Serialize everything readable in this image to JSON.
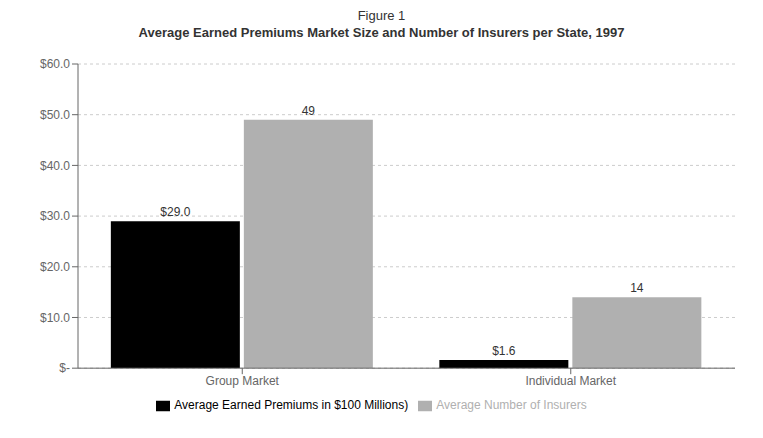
{
  "chart_data": {
    "type": "bar",
    "title": "Figure 1",
    "subtitle": "Average Earned Premiums Market Size and Number of Insurers per State, 1997",
    "categories": [
      "Group Market",
      "Individual Market"
    ],
    "series": [
      {
        "name": "Average Earned Premiums in $100 Millions)",
        "color": "#000000",
        "values": [
          29.0,
          1.6
        ],
        "value_labels": [
          "$29.0",
          "$1.6"
        ]
      },
      {
        "name": "Average Number of Insurers",
        "color": "#b0b0b0",
        "values": [
          49,
          14
        ]
      }
    ],
    "ylim": [
      0,
      60
    ],
    "yticks": [
      {
        "value": 0,
        "label": "$-"
      },
      {
        "value": 10,
        "label": "$10.0"
      },
      {
        "value": 20,
        "label": "$20.0"
      },
      {
        "value": 30,
        "label": "$30.0"
      },
      {
        "value": 40,
        "label": "$40.0"
      },
      {
        "value": 50,
        "label": "$50.0"
      },
      {
        "value": 60,
        "label": "$60.0"
      }
    ],
    "grid": true,
    "legend": "bottom",
    "data_labels": true
  }
}
